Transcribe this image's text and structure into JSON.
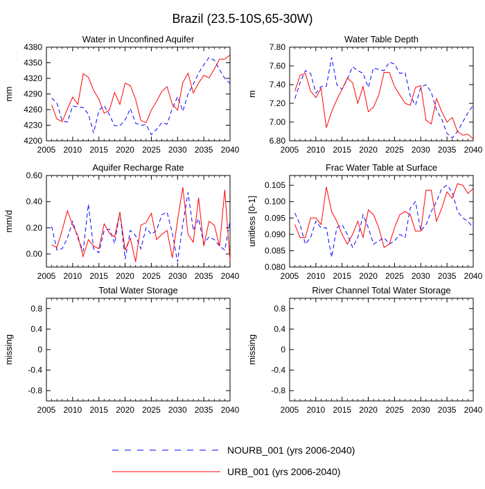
{
  "page": {
    "title": "Brazil (23.5-10S,65-30W)"
  },
  "colors": {
    "nourb": "#0000ff",
    "urb": "#ff0000",
    "axis": "#000000"
  },
  "legend": [
    {
      "label": "NOURB_001 (yrs 2006-2040)",
      "style": "dashed",
      "color": "#0000ff"
    },
    {
      "label": "URB_001 (yrs 2006-2040)",
      "style": "solid",
      "color": "#ff0000"
    }
  ],
  "chart_data": [
    {
      "id": "water-unconfined",
      "type": "line",
      "title": "Water in Unconfined Aquifer",
      "ylabel": "mm",
      "xlim": [
        2005,
        2040
      ],
      "ylim": [
        4200,
        4380
      ],
      "xticks": [
        "2005",
        "2010",
        "2015",
        "2020",
        "2025",
        "2030",
        "2035",
        "2040"
      ],
      "yticks": [
        "4200",
        "4230",
        "4260",
        "4290",
        "4320",
        "4350",
        "4380"
      ],
      "x": [
        2006,
        2007,
        2008,
        2009,
        2010,
        2011,
        2012,
        2013,
        2014,
        2015,
        2016,
        2017,
        2018,
        2019,
        2020,
        2021,
        2022,
        2023,
        2024,
        2025,
        2026,
        2027,
        2028,
        2029,
        2030,
        2031,
        2032,
        2033,
        2034,
        2035,
        2036,
        2037,
        2038,
        2039,
        2040
      ],
      "series": [
        {
          "name": "NOURB_001",
          "values": [
            4282,
            4273,
            4238,
            4236,
            4267,
            4265,
            4264,
            4251,
            4215,
            4258,
            4268,
            4250,
            4229,
            4229,
            4240,
            4262,
            4234,
            4230,
            4231,
            4212,
            4222,
            4235,
            4232,
            4262,
            4285,
            4257,
            4290,
            4309,
            4330,
            4346,
            4360,
            4355,
            4337,
            4320,
            4310
          ]
        },
        {
          "name": "URB_001",
          "values": [
            4269,
            4242,
            4237,
            4261,
            4284,
            4270,
            4329,
            4322,
            4297,
            4280,
            4253,
            4259,
            4293,
            4270,
            4311,
            4306,
            4280,
            4239,
            4235,
            4259,
            4276,
            4295,
            4304,
            4270,
            4259,
            4312,
            4330,
            4292,
            4311,
            4326,
            4321,
            4338,
            4357,
            4357,
            4365
          ]
        }
      ]
    },
    {
      "id": "water-table-depth",
      "type": "line",
      "title": "Water Table Depth",
      "ylabel": "m",
      "xlim": [
        2005,
        2040
      ],
      "ylim": [
        6.8,
        7.8
      ],
      "xticks": [
        "2005",
        "2010",
        "2015",
        "2020",
        "2025",
        "2030",
        "2035",
        "2040"
      ],
      "yticks": [
        "6.80",
        "7.00",
        "7.20",
        "7.40",
        "7.60",
        "7.80"
      ],
      "x": [
        2006,
        2007,
        2008,
        2009,
        2010,
        2011,
        2012,
        2013,
        2014,
        2015,
        2016,
        2017,
        2018,
        2019,
        2020,
        2021,
        2022,
        2023,
        2024,
        2025,
        2026,
        2027,
        2028,
        2029,
        2030,
        2031,
        2032,
        2033,
        2034,
        2035,
        2036,
        2037,
        2038,
        2039,
        2040
      ],
      "series": [
        {
          "name": "NOURB_001",
          "values": [
            7.25,
            7.42,
            7.55,
            7.52,
            7.31,
            7.38,
            7.38,
            7.69,
            7.4,
            7.35,
            7.46,
            7.59,
            7.55,
            7.52,
            7.37,
            7.58,
            7.56,
            7.55,
            7.64,
            7.62,
            7.52,
            7.53,
            7.28,
            7.18,
            7.37,
            7.4,
            7.32,
            7.13,
            7.03,
            6.88,
            6.83,
            6.9,
            7.0,
            7.1,
            7.18
          ]
        },
        {
          "name": "URB_001",
          "values": [
            7.33,
            7.5,
            7.52,
            7.33,
            7.26,
            7.36,
            6.94,
            7.11,
            7.24,
            7.35,
            7.47,
            7.42,
            7.2,
            7.38,
            7.11,
            7.16,
            7.29,
            7.53,
            7.53,
            7.38,
            7.29,
            7.2,
            7.18,
            7.37,
            7.39,
            7.02,
            6.98,
            7.25,
            7.11,
            7.0,
            7.05,
            6.9,
            6.86,
            6.87,
            6.82
          ]
        }
      ]
    },
    {
      "id": "aquifer-recharge",
      "type": "line",
      "title": "Aquifer Recharge Rate",
      "ylabel": "mm/d",
      "xlim": [
        2005,
        2040
      ],
      "ylim": [
        -0.1,
        0.6
      ],
      "xticks": [
        "2005",
        "2010",
        "2015",
        "2020",
        "2025",
        "2030",
        "2035",
        "2040"
      ],
      "yticks": [
        "0.00",
        "0.20",
        "0.40",
        "0.60"
      ],
      "x": [
        2006,
        2007,
        2008,
        2009,
        2010,
        2011,
        2012,
        2013,
        2014,
        2015,
        2016,
        2017,
        2018,
        2019,
        2020,
        2021,
        2022,
        2023,
        2024,
        2025,
        2026,
        2027,
        2028,
        2029,
        2030,
        2031,
        2032,
        2033,
        2034,
        2035,
        2036,
        2037,
        2038,
        2039,
        2040
      ],
      "series": [
        {
          "name": "NOURB_001",
          "values": [
            0.21,
            0.03,
            0.04,
            0.12,
            0.25,
            0.12,
            0.02,
            0.38,
            0.04,
            0.01,
            0.18,
            0.19,
            0.08,
            0.32,
            -0.04,
            0.18,
            0.14,
            0.04,
            0.2,
            0.15,
            0.18,
            0.3,
            0.32,
            0.16,
            -0.06,
            0.23,
            0.47,
            0.18,
            0.27,
            0.08,
            0.13,
            0.11,
            0.06,
            0.03,
            0.25
          ]
        },
        {
          "name": "URB_001",
          "values": [
            0.07,
            0.05,
            0.18,
            0.33,
            0.22,
            0.14,
            -0.02,
            0.11,
            0.06,
            0.04,
            0.23,
            0.16,
            0.13,
            0.32,
            0.03,
            0.12,
            -0.06,
            0.22,
            0.24,
            0.31,
            0.11,
            0.15,
            0.18,
            -0.03,
            0.26,
            0.51,
            0.15,
            0.09,
            0.43,
            0.06,
            0.25,
            0.22,
            0.06,
            0.49,
            -0.05
          ]
        }
      ]
    },
    {
      "id": "frac-water-table",
      "type": "line",
      "title": "Frac Water Table at Surface",
      "ylabel": "unitless [0-1]",
      "xlim": [
        2005,
        2040
      ],
      "ylim": [
        0.08,
        0.108
      ],
      "xticks": [
        "2005",
        "2010",
        "2015",
        "2020",
        "2025",
        "2030",
        "2035",
        "2040"
      ],
      "yticks": [
        "0.080",
        "0.085",
        "0.090",
        "0.095",
        "0.100",
        "0.105"
      ],
      "x": [
        2006,
        2007,
        2008,
        2009,
        2010,
        2011,
        2012,
        2013,
        2014,
        2015,
        2016,
        2017,
        2018,
        2019,
        2020,
        2021,
        2022,
        2023,
        2024,
        2025,
        2026,
        2027,
        2028,
        2029,
        2030,
        2031,
        2032,
        2033,
        2034,
        2035,
        2036,
        2037,
        2038,
        2039,
        2040
      ],
      "series": [
        {
          "name": "NOURB_001",
          "values": [
            0.0965,
            0.093,
            0.087,
            0.089,
            0.094,
            0.092,
            0.092,
            0.083,
            0.092,
            0.093,
            0.09,
            0.086,
            0.089,
            0.096,
            0.092,
            0.087,
            0.088,
            0.089,
            0.087,
            0.088,
            0.09,
            0.089,
            0.098,
            0.1,
            0.091,
            0.093,
            0.097,
            0.1,
            0.104,
            0.105,
            0.103,
            0.097,
            0.095,
            0.094,
            0.092
          ]
        },
        {
          "name": "URB_001",
          "values": [
            0.093,
            0.089,
            0.089,
            0.095,
            0.095,
            0.093,
            0.1045,
            0.097,
            0.094,
            0.09,
            0.087,
            0.09,
            0.094,
            0.089,
            0.0975,
            0.096,
            0.092,
            0.086,
            0.087,
            0.092,
            0.096,
            0.097,
            0.096,
            0.091,
            0.091,
            0.1035,
            0.1035,
            0.094,
            0.098,
            0.103,
            0.101,
            0.1055,
            0.105,
            0.1025,
            0.104
          ]
        }
      ]
    },
    {
      "id": "total-water-storage",
      "type": "line",
      "title": "Total Water Storage",
      "ylabel": "missing",
      "xlim": [
        2005,
        2040
      ],
      "ylim": [
        -1,
        1
      ],
      "xticks": [
        "2005",
        "2010",
        "2015",
        "2020",
        "2025",
        "2030",
        "2035",
        "2040"
      ],
      "yticks": [
        "-0.8",
        "-0.4",
        "0",
        "0.4",
        "0.8"
      ],
      "x": [],
      "series": []
    },
    {
      "id": "river-channel-storage",
      "type": "line",
      "title": "River Channel Total Water Storage",
      "ylabel": "missing",
      "xlim": [
        2005,
        2040
      ],
      "ylim": [
        -1,
        1
      ],
      "xticks": [
        "2005",
        "2010",
        "2015",
        "2020",
        "2025",
        "2030",
        "2035",
        "2040"
      ],
      "yticks": [
        "-0.8",
        "-0.4",
        "0",
        "0.4",
        "0.8"
      ],
      "x": [],
      "series": []
    }
  ]
}
